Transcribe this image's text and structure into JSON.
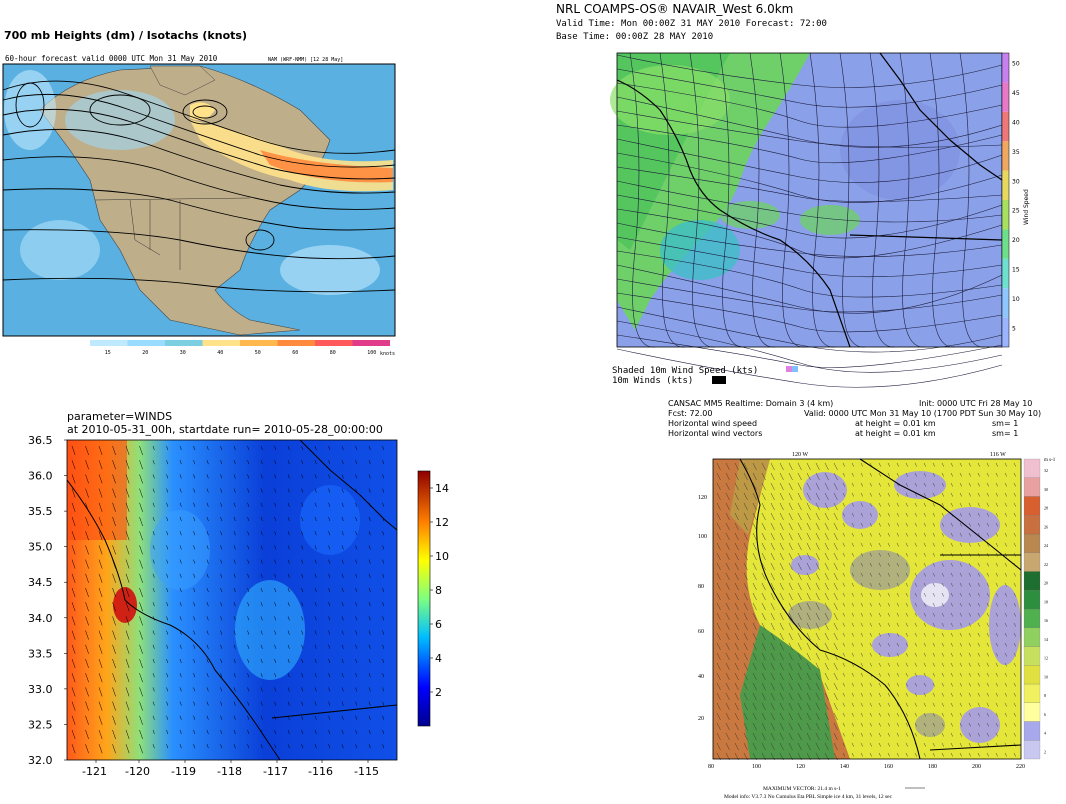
{
  "panel_tl": {
    "title": "700 mb Heights (dm) / Isotachs (knots)",
    "subtitle": "60-hour forecast valid 0000 UTC Mon 31 May 2010",
    "corner_label": "NAM (WRF-NMM) [12 28 May]",
    "colorbar_ticks": [
      "15",
      "20",
      "30",
      "40",
      "50",
      "60",
      "80",
      "100"
    ],
    "colorbar_colors": [
      "#bfe9ff",
      "#9adcff",
      "#7ccfe0",
      "#ffe28a",
      "#ffb84d",
      "#ff8a3d",
      "#ff5a5a",
      "#e03c8a"
    ],
    "units": "knots"
  },
  "panel_tr": {
    "title": "NRL COAMPS-OS® NAVAIR_West 6.0km",
    "valid_line": "Valid Time: Mon 00:00Z 31 MAY 2010     Forecast: 72:00",
    "base_line": "Base Time: 00:00Z 28 MAY 2010",
    "colorbar_ticks": [
      "5",
      "10",
      "15",
      "20",
      "25",
      "30",
      "35",
      "40",
      "45",
      "50"
    ],
    "colorbar_label": "Wind Speed",
    "legend_shaded": "Shaded 10m Wind Speed (kts)",
    "legend_winds": "10m Winds (kts)"
  },
  "panel_bl": {
    "title_line1": "parameter=WINDS",
    "title_line2": "at 2010-05-31_00h, startdate run= 2010-05-28_00:00:00",
    "y_ticks": [
      "36.5",
      "36.0",
      "35.5",
      "35.0",
      "34.5",
      "34.0",
      "33.5",
      "33.0",
      "32.5",
      "32.0"
    ],
    "x_ticks": [
      "-121",
      "-120",
      "-119",
      "-118",
      "-117",
      "-116",
      "-115"
    ],
    "colorbar_ticks": [
      "14",
      "12",
      "10",
      "8",
      "6",
      "4",
      "2"
    ],
    "colorbar_range": [
      0,
      15
    ]
  },
  "panel_br": {
    "header_left_1": "CANSAC MM5 Realtime: Domain 3  (4 km)",
    "header_right_1": "Init: 0000 UTC Fri 28 May 10",
    "header_left_2": "Fcst:   72.00",
    "header_right_2": "Valid: 0000 UTC Mon 31 May 10 (1700 PDT Sun 30 May 10)",
    "header_left_3": "Horizontal wind speed",
    "header_mid_3": "at height = 0.01 km",
    "header_right_3": "sm= 1",
    "header_left_4": "Horizontal wind vectors",
    "header_mid_4": "at height = 0.01 km",
    "header_right_4": "sm= 1",
    "top_ticks": [
      "120 W",
      "116 W"
    ],
    "y_ticks": [
      "120",
      "100",
      "80",
      "60",
      "40",
      "20"
    ],
    "x_ticks": [
      "80",
      "100",
      "120",
      "140",
      "160",
      "180",
      "200",
      "220"
    ],
    "colorbar_unit": "m s-1",
    "colorbar_ticks": [
      "32",
      "30",
      "28",
      "26",
      "24",
      "22",
      "20",
      "18",
      "16",
      "14",
      "12",
      "10",
      "8",
      "6",
      "4",
      "2"
    ],
    "footer_1": "MAXIMUM VECTOR:  21.4          m s-1",
    "footer_2": "Model info: V3.7.3  No Cumulus  Eta PBL     Simple ice     4 km,  31 levels,  12 sec"
  }
}
